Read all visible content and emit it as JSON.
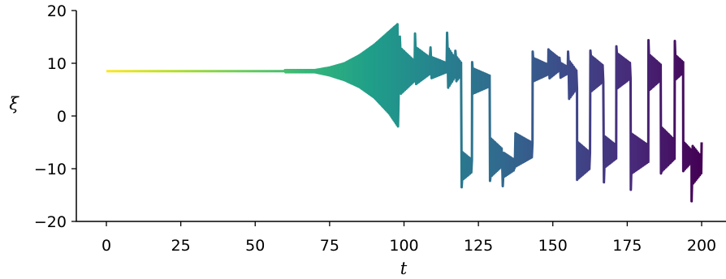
{
  "chart_data": {
    "type": "line",
    "title": "",
    "xlabel": "t",
    "ylabel": "ξ",
    "xlim": [
      -10,
      208
    ],
    "ylim": [
      -20,
      20
    ],
    "x_ticks": [
      0,
      25,
      50,
      75,
      100,
      125,
      150,
      175,
      200
    ],
    "x_tick_labels": [
      "0",
      "25",
      "50",
      "75",
      "100",
      "125",
      "150",
      "175",
      "200"
    ],
    "y_ticks": [
      -20,
      -10,
      0,
      10,
      20
    ],
    "y_tick_labels": [
      "−20",
      "−10",
      "0",
      "10",
      "20"
    ],
    "grid": false,
    "legend": "none",
    "colormap": "viridis (color runs from yellow at t=0 to dark purple at t=200)",
    "colormap_stops": [
      "#fde725",
      "#b5de2b",
      "#6ece58",
      "#35b779",
      "#1f9e89",
      "#26828e",
      "#31688e",
      "#3e4989",
      "#482878",
      "#440154"
    ],
    "series": [
      {
        "description": "Chaotic-looking trace: near-constant at about 8.5 until t≈70, growing oscillation envelope until t≈98, then irregular fast oscillations between about −18 and +18. Values below are the envelope / segment extremes.",
        "x": [
          0,
          70,
          75,
          80,
          85,
          90,
          95,
          98
        ],
        "envelope_upper": [
          8.5,
          8.7,
          9.2,
          10,
          11.5,
          13.5,
          16,
          17.5
        ],
        "envelope_lower": [
          8.5,
          8.3,
          7.7,
          6.8,
          5.5,
          3.5,
          0.5,
          -2
        ]
      }
    ]
  }
}
